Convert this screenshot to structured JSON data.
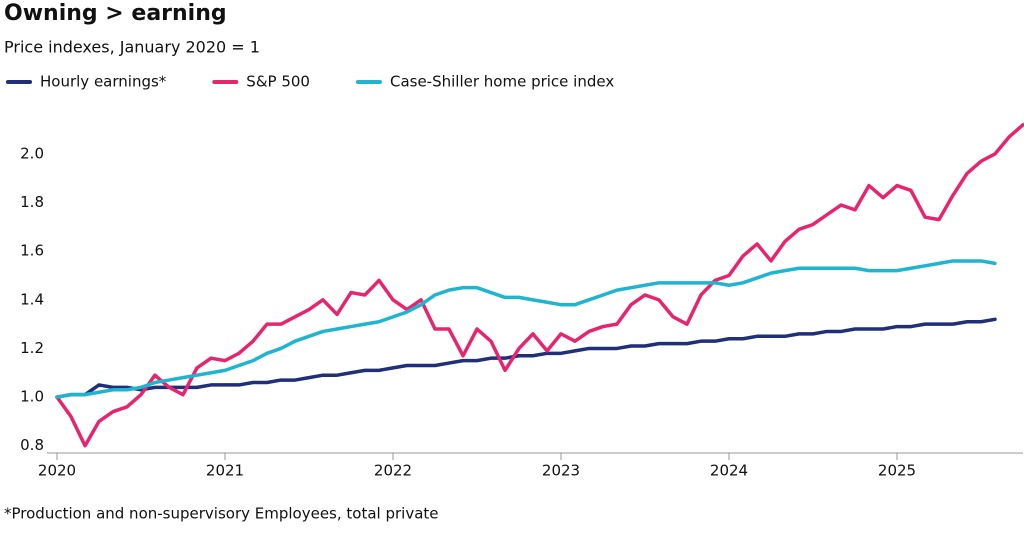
{
  "chart_data": {
    "type": "line",
    "title": "Owning > earning",
    "subtitle": "Price indexes, January 2020 = 1",
    "footnote": "*Production and non-supervisory Employees, total private",
    "x": [
      2020,
      2020.083,
      2020.167,
      2020.25,
      2020.333,
      2020.417,
      2020.5,
      2020.583,
      2020.667,
      2020.75,
      2020.833,
      2020.917,
      2021,
      2021.083,
      2021.167,
      2021.25,
      2021.333,
      2021.417,
      2021.5,
      2021.583,
      2021.667,
      2021.75,
      2021.833,
      2021.917,
      2022,
      2022.083,
      2022.167,
      2022.25,
      2022.333,
      2022.417,
      2022.5,
      2022.583,
      2022.667,
      2022.75,
      2022.833,
      2022.917,
      2023,
      2023.083,
      2023.167,
      2023.25,
      2023.333,
      2023.417,
      2023.5,
      2023.583,
      2023.667,
      2023.75,
      2023.833,
      2023.917,
      2024,
      2024.083,
      2024.167,
      2024.25,
      2024.333,
      2024.417,
      2024.5,
      2024.583,
      2024.667,
      2024.75,
      2024.833,
      2024.917,
      2025,
      2025.083,
      2025.167,
      2025.25,
      2025.333,
      2025.417,
      2025.5,
      2025.583,
      2025.667,
      2025.75
    ],
    "series": [
      {
        "name": "Hourly earnings*",
        "color": "#1f2f7a",
        "values": [
          1.0,
          1.01,
          1.01,
          1.05,
          1.04,
          1.04,
          1.03,
          1.04,
          1.04,
          1.04,
          1.04,
          1.05,
          1.05,
          1.05,
          1.06,
          1.06,
          1.07,
          1.07,
          1.08,
          1.09,
          1.09,
          1.1,
          1.11,
          1.11,
          1.12,
          1.13,
          1.13,
          1.13,
          1.14,
          1.15,
          1.15,
          1.16,
          1.16,
          1.17,
          1.17,
          1.18,
          1.18,
          1.19,
          1.2,
          1.2,
          1.2,
          1.21,
          1.21,
          1.22,
          1.22,
          1.22,
          1.23,
          1.23,
          1.24,
          1.24,
          1.25,
          1.25,
          1.25,
          1.26,
          1.26,
          1.27,
          1.27,
          1.28,
          1.28,
          1.28,
          1.29,
          1.29,
          1.3,
          1.3,
          1.3,
          1.31,
          1.31,
          1.32,
          null,
          null
        ]
      },
      {
        "name": "S&P 500",
        "color": "#e8246e",
        "values": [
          1.0,
          0.92,
          0.8,
          0.9,
          0.94,
          0.96,
          1.01,
          1.09,
          1.04,
          1.01,
          1.12,
          1.16,
          1.15,
          1.18,
          1.23,
          1.3,
          1.3,
          1.33,
          1.36,
          1.4,
          1.34,
          1.43,
          1.42,
          1.48,
          1.4,
          1.36,
          1.4,
          1.28,
          1.28,
          1.17,
          1.28,
          1.23,
          1.11,
          1.2,
          1.26,
          1.19,
          1.26,
          1.23,
          1.27,
          1.29,
          1.3,
          1.38,
          1.42,
          1.4,
          1.33,
          1.3,
          1.42,
          1.48,
          1.5,
          1.58,
          1.63,
          1.56,
          1.64,
          1.69,
          1.71,
          1.75,
          1.79,
          1.77,
          1.87,
          1.82,
          1.87,
          1.85,
          1.74,
          1.73,
          1.83,
          1.92,
          1.97,
          2.0,
          2.07,
          2.12
        ]
      },
      {
        "name": "Case-Shiller home price index",
        "color": "#1fb5d1",
        "values": [
          1.0,
          1.01,
          1.01,
          1.02,
          1.03,
          1.03,
          1.04,
          1.06,
          1.07,
          1.08,
          1.09,
          1.1,
          1.11,
          1.13,
          1.15,
          1.18,
          1.2,
          1.23,
          1.25,
          1.27,
          1.28,
          1.29,
          1.3,
          1.31,
          1.33,
          1.35,
          1.38,
          1.42,
          1.44,
          1.45,
          1.45,
          1.43,
          1.41,
          1.41,
          1.4,
          1.39,
          1.38,
          1.38,
          1.4,
          1.42,
          1.44,
          1.45,
          1.46,
          1.47,
          1.47,
          1.47,
          1.47,
          1.47,
          1.46,
          1.47,
          1.49,
          1.51,
          1.52,
          1.53,
          1.53,
          1.53,
          1.53,
          1.53,
          1.52,
          1.52,
          1.52,
          1.53,
          1.54,
          1.55,
          1.56,
          1.56,
          1.56,
          1.55,
          null,
          null
        ]
      }
    ],
    "xlim": [
      2020,
      2025.75
    ],
    "xticks": [
      2020,
      2021,
      2022,
      2023,
      2024,
      2025
    ],
    "ylim": [
      0.77,
      2.15
    ],
    "yticks": [
      0.8,
      {
        "value": 1,
        "label": "1.0"
      },
      1.2,
      1.4,
      1.6,
      1.8,
      {
        "value": 2,
        "label": "2.0"
      }
    ]
  }
}
